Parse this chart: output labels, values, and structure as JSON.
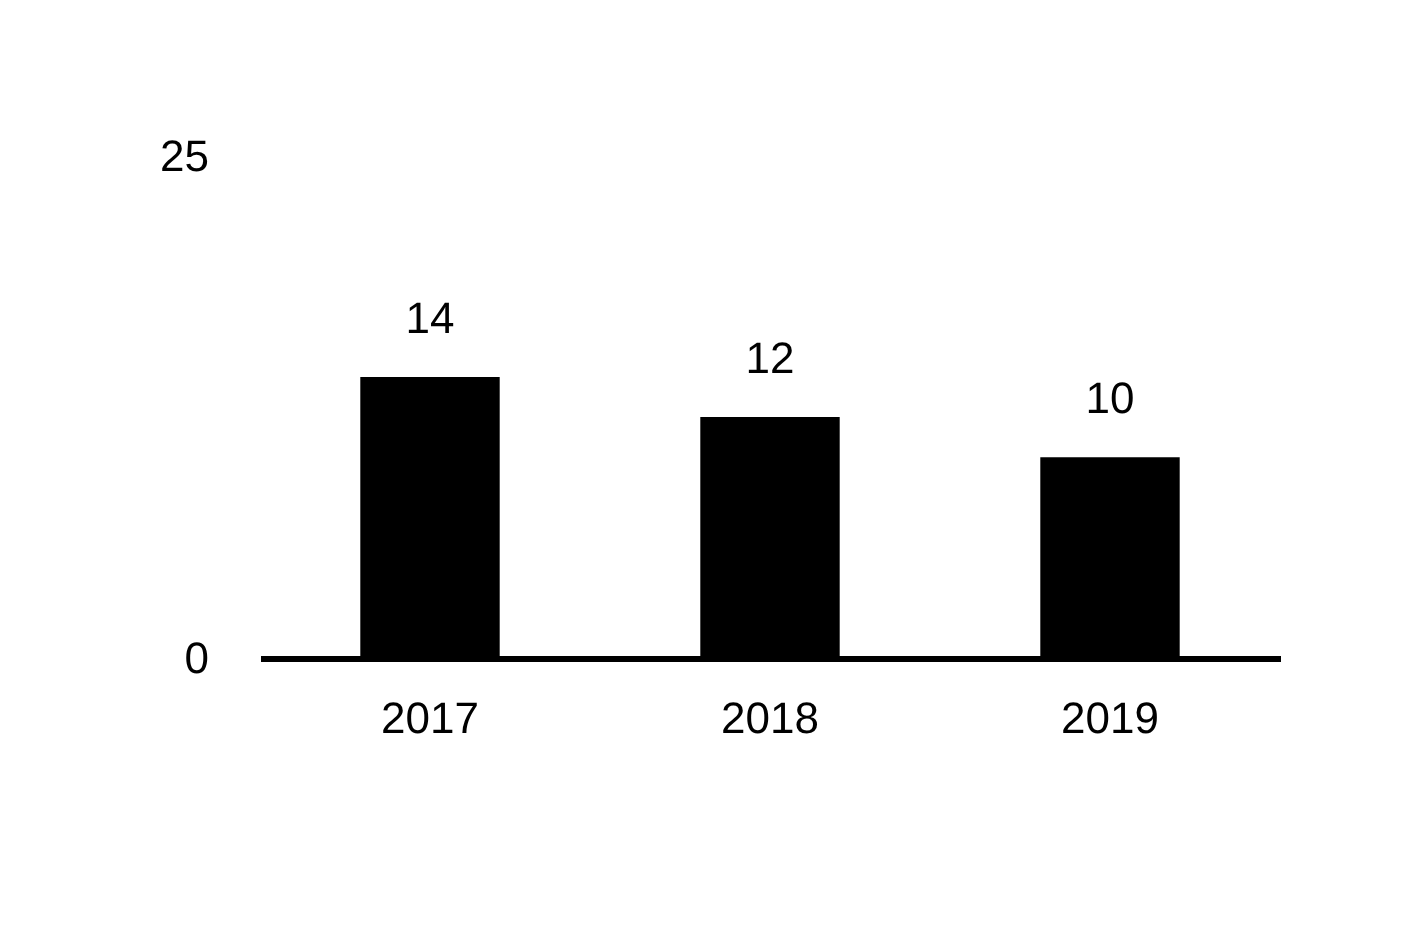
{
  "chart_data": {
    "type": "bar",
    "categories": [
      "2017",
      "2018",
      "2019"
    ],
    "values": [
      14,
      12,
      10
    ],
    "color": "#000000",
    "ylim": [
      0,
      25
    ],
    "yticks": [
      0,
      25
    ],
    "data_labels": true,
    "grid": false
  }
}
